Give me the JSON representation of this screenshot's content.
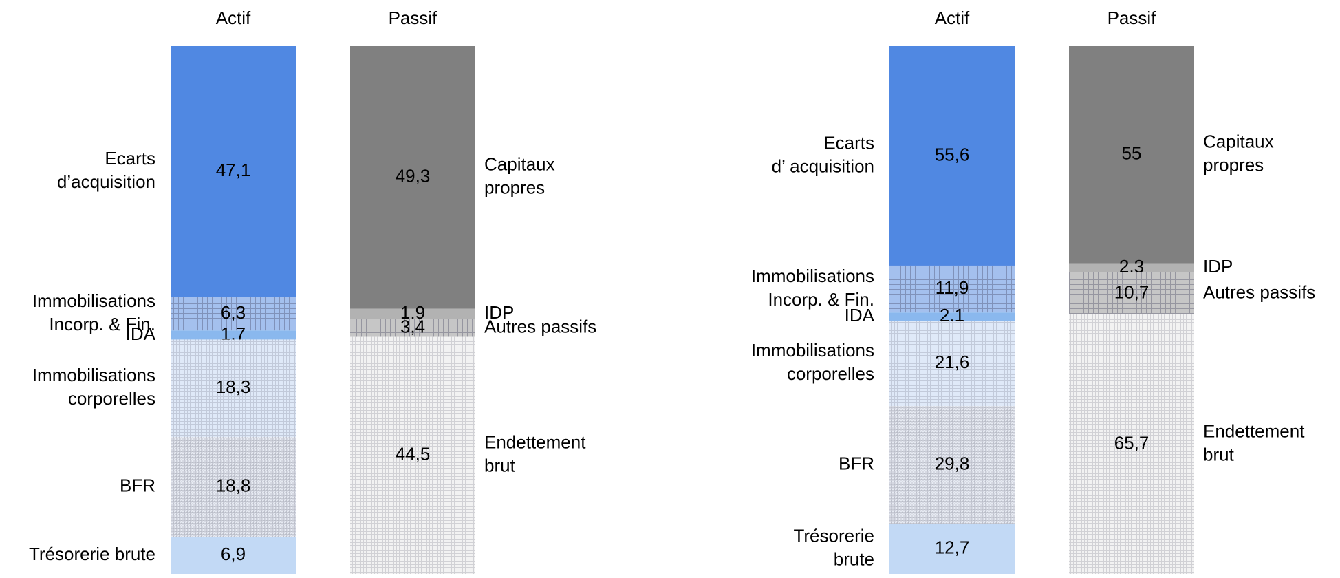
{
  "chart_data": [
    {
      "type": "stacked_bar",
      "columns": [
        {
          "name": "Actif",
          "labels": [
            [
              "Ecarts",
              "d’acquisition"
            ],
            [
              "Immobilisations",
              "Incorp. & Fin."
            ],
            [
              "IDA"
            ],
            [
              "Immobilisations",
              "corporelles"
            ],
            [
              "BFR"
            ],
            [
              "Trésorerie brute"
            ]
          ],
          "values": [
            47.1,
            6.3,
            1.7,
            18.3,
            18.8,
            6.9
          ],
          "value_labels": [
            "47,1",
            "6,3",
            "1,7",
            "18,3",
            "18,8",
            "6,9"
          ],
          "colors": [
            "#5088e2",
            "#a4c0ee",
            "#8ab8ee",
            "#dfe9f8",
            "#e9edf5",
            "#c2d9f5"
          ],
          "hatch": [
            "none",
            "grid",
            "none",
            "fine",
            "cross",
            "none"
          ]
        },
        {
          "name": "Passif",
          "labels": [
            [
              "Capitaux",
              "propres"
            ],
            [
              "IDP"
            ],
            [
              "Autres passifs"
            ],
            [
              "Endettement",
              "brut"
            ]
          ],
          "values": [
            49.3,
            1.9,
            3.4,
            44.5
          ],
          "value_labels": [
            "49,3",
            "1,9",
            "3,4",
            "44,5"
          ],
          "colors": [
            "#808080",
            "#b2b2b2",
            "#c6c6c6",
            "#f2f2f2"
          ],
          "hatch": [
            "none",
            "none",
            "grid",
            "fine"
          ]
        }
      ]
    },
    {
      "type": "stacked_bar",
      "columns": [
        {
          "name": "Actif",
          "labels": [
            [
              "Ecarts",
              "d’ acquisition"
            ],
            [
              "Immobilisations",
              "Incorp. & Fin."
            ],
            [
              "IDA"
            ],
            [
              "Immobilisations",
              "corporelles"
            ],
            [
              "BFR"
            ],
            [
              "Trésorerie",
              "brute"
            ]
          ],
          "values": [
            55.6,
            11.9,
            2.1,
            21.6,
            29.8,
            12.7
          ],
          "value_labels": [
            "55,6",
            "11,9",
            "2,1",
            "21,6",
            "29,8",
            "12,7"
          ],
          "colors": [
            "#5088e2",
            "#a4c0ee",
            "#8ab8ee",
            "#dfe9f8",
            "#e9edf5",
            "#c2d9f5"
          ],
          "hatch": [
            "none",
            "grid",
            "none",
            "fine",
            "cross",
            "none"
          ]
        },
        {
          "name": "Passif",
          "labels": [
            [
              "Capitaux",
              "propres"
            ],
            [
              "IDP"
            ],
            [
              "Autres passifs"
            ],
            [
              "Endettement",
              "brut"
            ]
          ],
          "values": [
            55,
            2.3,
            10.7,
            65.7
          ],
          "value_labels": [
            "55",
            "2,3",
            "10,7",
            "65,7"
          ],
          "colors": [
            "#808080",
            "#b2b2b2",
            "#c6c6c6",
            "#f2f2f2"
          ],
          "hatch": [
            "none",
            "none",
            "grid",
            "fine"
          ]
        }
      ]
    }
  ]
}
